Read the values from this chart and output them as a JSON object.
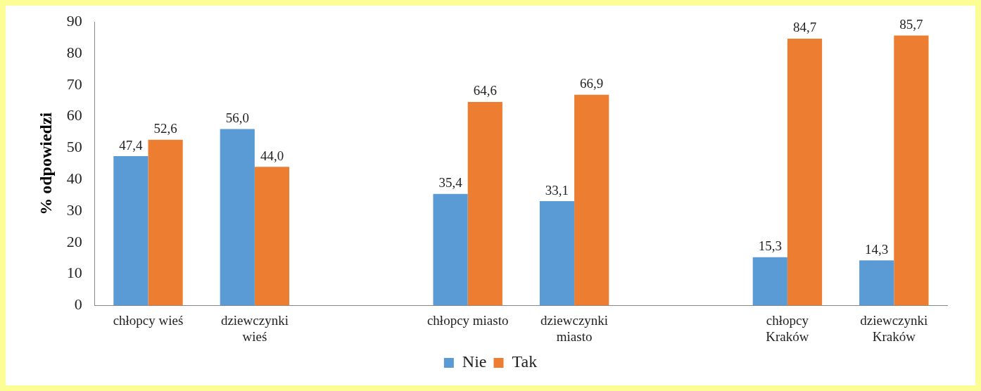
{
  "chart_data": {
    "type": "bar",
    "ylabel": "% odpowiedzi",
    "categories": [
      "chłopcy wieś",
      "dziewczynki\nwieś",
      null,
      "chłopcy miasto",
      "dziewczynki\nmiasto",
      null,
      "chłopcy\nKraków",
      "dziewczynki\nKraków"
    ],
    "series": [
      {
        "name": "Nie",
        "color": "#5b9bd5",
        "values": [
          47.4,
          56.0,
          null,
          35.4,
          33.1,
          null,
          15.3,
          14.3
        ],
        "value_labels": [
          "47,4",
          "56,0",
          null,
          "35,4",
          "33,1",
          null,
          "15,3",
          "14,3"
        ]
      },
      {
        "name": "Tak",
        "color": "#ed7d31",
        "values": [
          52.6,
          44.0,
          null,
          64.6,
          66.9,
          null,
          84.7,
          85.7
        ],
        "value_labels": [
          "52,6",
          "44,0",
          null,
          "64,6",
          "66,9",
          null,
          "84,7",
          "85,7"
        ]
      }
    ],
    "ylim": [
      0,
      90
    ],
    "yticks": [
      0,
      10,
      20,
      30,
      40,
      50,
      60,
      70,
      80,
      90
    ],
    "grid": false,
    "legend": "bottom"
  }
}
